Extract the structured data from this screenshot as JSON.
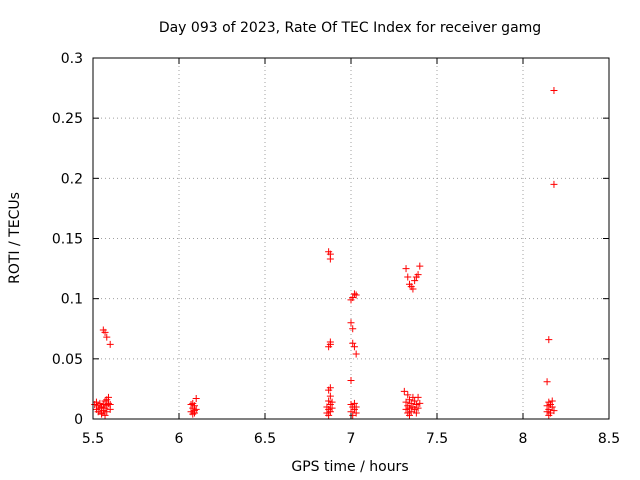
{
  "chart_data": {
    "type": "scatter",
    "title": "Day 093 of 2023, Rate Of TEC Index for receiver gamg",
    "xlabel": "GPS time / hours",
    "ylabel": "ROTI / TECUs",
    "xlim": [
      5.5,
      8.5
    ],
    "ylim": [
      0,
      0.3
    ],
    "x_ticks": [
      5.5,
      6,
      6.5,
      7,
      7.5,
      8,
      8.5
    ],
    "x_tick_labels": [
      "5.5",
      "6",
      "6.5",
      "7",
      "7.5",
      "8",
      "8.5"
    ],
    "y_ticks": [
      0,
      0.05,
      0.1,
      0.15,
      0.2,
      0.25,
      0.3
    ],
    "y_tick_labels": [
      "0",
      "0.05",
      "0.1",
      "0.15",
      "0.2",
      "0.25",
      "0.3"
    ],
    "grid": true,
    "marker": "plus",
    "color": "#ff0000",
    "series": [
      {
        "points": [
          [
            5.51,
            0.012
          ],
          [
            5.52,
            0.008
          ],
          [
            5.52,
            0.014
          ],
          [
            5.53,
            0.006
          ],
          [
            5.53,
            0.011
          ],
          [
            5.54,
            0.009
          ],
          [
            5.54,
            0.013
          ],
          [
            5.55,
            0.005
          ],
          [
            5.55,
            0.01
          ],
          [
            5.56,
            0.012
          ],
          [
            5.56,
            0.007
          ],
          [
            5.57,
            0.015
          ],
          [
            5.57,
            0.009
          ],
          [
            5.58,
            0.011
          ],
          [
            5.58,
            0.006
          ],
          [
            5.59,
            0.018
          ],
          [
            5.59,
            0.013
          ],
          [
            5.6,
            0.008
          ],
          [
            5.6,
            0.012
          ],
          [
            5.55,
            0.004
          ],
          [
            5.57,
            0.003
          ],
          [
            5.58,
            0.016
          ],
          [
            5.56,
            0.074
          ],
          [
            5.57,
            0.072
          ],
          [
            5.58,
            0.068
          ],
          [
            5.6,
            0.062
          ],
          [
            6.07,
            0.012
          ],
          [
            6.07,
            0.006
          ],
          [
            6.08,
            0.009
          ],
          [
            6.08,
            0.004
          ],
          [
            6.09,
            0.011
          ],
          [
            6.09,
            0.007
          ],
          [
            6.1,
            0.017
          ],
          [
            6.1,
            0.008
          ],
          [
            6.08,
            0.013
          ],
          [
            6.09,
            0.005
          ],
          [
            6.86,
            0.01
          ],
          [
            6.86,
            0.005
          ],
          [
            6.87,
            0.015
          ],
          [
            6.87,
            0.008
          ],
          [
            6.87,
            0.003
          ],
          [
            6.88,
            0.012
          ],
          [
            6.88,
            0.006
          ],
          [
            6.88,
            0.019
          ],
          [
            6.89,
            0.009
          ],
          [
            6.89,
            0.014
          ],
          [
            6.87,
            0.024
          ],
          [
            6.88,
            0.026
          ],
          [
            6.87,
            0.06
          ],
          [
            6.88,
            0.062
          ],
          [
            6.88,
            0.064
          ],
          [
            6.87,
            0.139
          ],
          [
            6.88,
            0.137
          ],
          [
            6.88,
            0.133
          ],
          [
            7.0,
            0.012
          ],
          [
            7.0,
            0.006
          ],
          [
            7.01,
            0.01
          ],
          [
            7.01,
            0.003
          ],
          [
            7.02,
            0.008
          ],
          [
            7.02,
            0.013
          ],
          [
            7.03,
            0.005
          ],
          [
            7.03,
            0.01
          ],
          [
            7.0,
            0.032
          ],
          [
            7.0,
            0.08
          ],
          [
            7.01,
            0.075
          ],
          [
            7.01,
            0.063
          ],
          [
            7.02,
            0.06
          ],
          [
            7.03,
            0.054
          ],
          [
            7.0,
            0.099
          ],
          [
            7.01,
            0.101
          ],
          [
            7.02,
            0.104
          ],
          [
            7.03,
            0.103
          ],
          [
            7.31,
            0.023
          ],
          [
            7.32,
            0.014
          ],
          [
            7.32,
            0.008
          ],
          [
            7.33,
            0.02
          ],
          [
            7.33,
            0.011
          ],
          [
            7.33,
            0.005
          ],
          [
            7.34,
            0.016
          ],
          [
            7.34,
            0.009
          ],
          [
            7.35,
            0.013
          ],
          [
            7.35,
            0.006
          ],
          [
            7.36,
            0.018
          ],
          [
            7.36,
            0.01
          ],
          [
            7.37,
            0.008
          ],
          [
            7.37,
            0.015
          ],
          [
            7.38,
            0.012
          ],
          [
            7.38,
            0.005
          ],
          [
            7.39,
            0.018
          ],
          [
            7.39,
            0.009
          ],
          [
            7.4,
            0.013
          ],
          [
            7.34,
            0.003
          ],
          [
            7.32,
            0.125
          ],
          [
            7.33,
            0.118
          ],
          [
            7.34,
            0.112
          ],
          [
            7.35,
            0.11
          ],
          [
            7.36,
            0.108
          ],
          [
            7.37,
            0.115
          ],
          [
            7.38,
            0.118
          ],
          [
            7.39,
            0.12
          ],
          [
            7.4,
            0.127
          ],
          [
            8.14,
            0.011
          ],
          [
            8.14,
            0.006
          ],
          [
            8.15,
            0.014
          ],
          [
            8.15,
            0.008
          ],
          [
            8.15,
            0.003
          ],
          [
            8.16,
            0.012
          ],
          [
            8.16,
            0.005
          ],
          [
            8.17,
            0.01
          ],
          [
            8.17,
            0.015
          ],
          [
            8.18,
            0.007
          ],
          [
            8.14,
            0.031
          ],
          [
            8.15,
            0.066
          ],
          [
            8.18,
            0.195
          ],
          [
            8.18,
            0.273
          ]
        ]
      }
    ]
  }
}
